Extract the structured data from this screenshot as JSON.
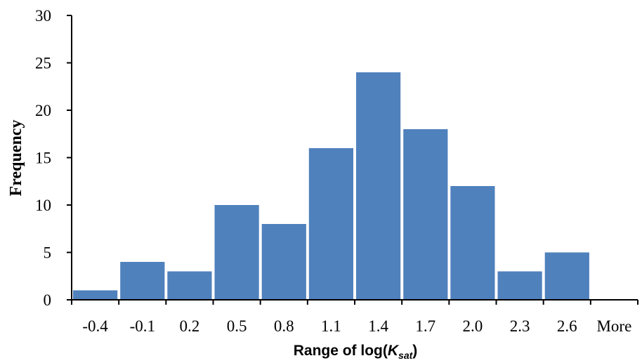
{
  "chart_data": {
    "type": "bar",
    "title": "",
    "xlabel": {
      "prefix": "Range of log(",
      "variable": "K",
      "subscript": "sat",
      "suffix": ")"
    },
    "ylabel": "Frequency",
    "categories": [
      "-0.4",
      "-0.1",
      "0.2",
      "0.5",
      "0.8",
      "1.1",
      "1.4",
      "1.7",
      "2.0",
      "2.3",
      "2.6",
      "More"
    ],
    "series": [
      {
        "values": [
          1,
          4,
          3,
          10,
          8,
          16,
          24,
          18,
          12,
          3,
          5,
          0
        ],
        "color": "#4f81bd"
      }
    ],
    "ylim": [
      0,
      30
    ],
    "yticks": [
      0,
      5,
      10,
      15,
      20,
      25,
      30
    ],
    "grid": false,
    "legend": "none"
  }
}
